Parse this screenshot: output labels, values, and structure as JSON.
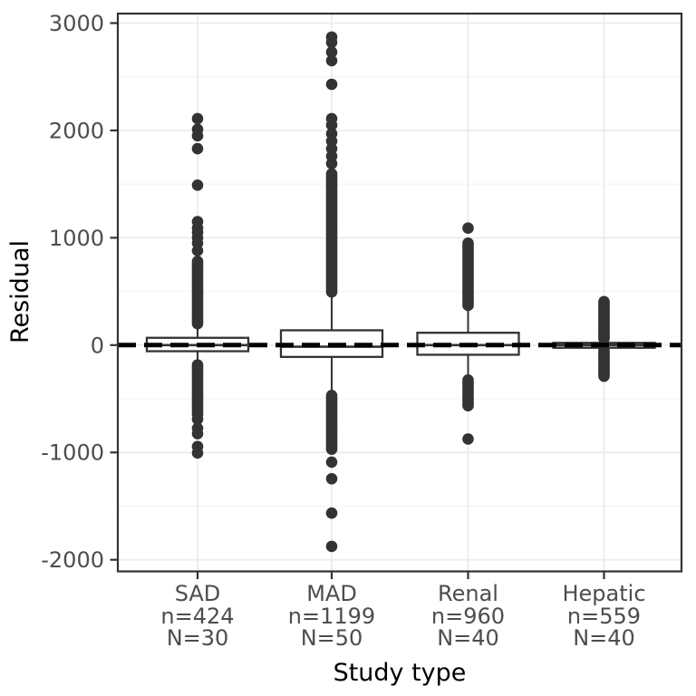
{
  "chart_data": {
    "type": "boxplot",
    "title": "",
    "xlabel": "Study type",
    "ylabel": "Residual",
    "ylim": [
      -2110,
      3090
    ],
    "grid": true,
    "legend": "none",
    "yticks": [
      {
        "value": 3000,
        "label": "3000"
      },
      {
        "value": 2000,
        "label": "2000"
      },
      {
        "value": 1000,
        "label": "1000"
      },
      {
        "value": 0,
        "label": "0"
      },
      {
        "value": -1000,
        "label": "-1000"
      },
      {
        "value": -2000,
        "label": "-2000"
      }
    ],
    "yticks_minor": [
      2500,
      1500,
      500,
      -500,
      -1500
    ],
    "reference_line": {
      "y": 0,
      "style": "dashed",
      "color": "#000000",
      "width": 5,
      "dash": "20 9"
    },
    "categories": [
      {
        "label": "SAD",
        "n_label": "n=424",
        "N_label": "N=30",
        "box": {
          "median": 0,
          "q1": -57,
          "q3": 68,
          "whisker_low": -153,
          "whisker_high": 190
        },
        "outliers_high": [
          200,
          220,
          240,
          260,
          280,
          300,
          320,
          340,
          360,
          380,
          400,
          420,
          440,
          460,
          480,
          500,
          520,
          540,
          560,
          580,
          600,
          620,
          640,
          660,
          680,
          700,
          720,
          740,
          760,
          780,
          880,
          950,
          1000,
          1050,
          1090,
          1150,
          1490,
          1830,
          1950,
          2010,
          2110
        ],
        "outliers_low": [
          -185,
          -205,
          -225,
          -245,
          -265,
          -285,
          -305,
          -325,
          -345,
          -365,
          -385,
          -405,
          -425,
          -445,
          -465,
          -485,
          -505,
          -525,
          -545,
          -565,
          -585,
          -605,
          -625,
          -645,
          -690,
          -775,
          -825,
          -945,
          -1005
        ]
      },
      {
        "label": "MAD",
        "n_label": "n=1199",
        "N_label": "N=50",
        "box": {
          "median": -15,
          "q1": -110,
          "q3": 138,
          "whisker_low": -430,
          "whisker_high": 495
        },
        "outliers_high": [
          495,
          515,
          535,
          555,
          575,
          595,
          615,
          635,
          655,
          675,
          695,
          715,
          735,
          755,
          775,
          795,
          815,
          835,
          855,
          875,
          895,
          915,
          935,
          955,
          975,
          995,
          1015,
          1035,
          1055,
          1075,
          1095,
          1115,
          1135,
          1155,
          1175,
          1195,
          1215,
          1235,
          1255,
          1275,
          1295,
          1315,
          1335,
          1355,
          1375,
          1395,
          1415,
          1435,
          1455,
          1475,
          1495,
          1515,
          1535,
          1555,
          1575,
          1595,
          1690,
          1760,
          1830,
          1900,
          1970,
          2050,
          2110,
          2430,
          2650,
          2730,
          2820,
          2870
        ],
        "outliers_low": [
          -470,
          -490,
          -510,
          -530,
          -550,
          -570,
          -590,
          -610,
          -630,
          -650,
          -670,
          -690,
          -710,
          -730,
          -750,
          -770,
          -790,
          -810,
          -830,
          -850,
          -870,
          -890,
          -910,
          -930,
          -950,
          -970,
          -1090,
          -1245,
          -1565,
          -1875
        ]
      },
      {
        "label": "Renal",
        "n_label": "n=960",
        "N_label": "N=40",
        "box": {
          "median": 0,
          "q1": -90,
          "q3": 115,
          "whisker_low": -315,
          "whisker_high": 340
        },
        "outliers_high": [
          370,
          390,
          410,
          430,
          450,
          470,
          490,
          510,
          530,
          550,
          570,
          590,
          610,
          630,
          650,
          670,
          690,
          710,
          730,
          750,
          770,
          790,
          810,
          830,
          850,
          870,
          890,
          910,
          930,
          950,
          1090
        ],
        "outliers_low": [
          -325,
          -345,
          -365,
          -385,
          -405,
          -425,
          -445,
          -465,
          -485,
          -505,
          -525,
          -545,
          -565,
          -875
        ]
      },
      {
        "label": "Hepatic",
        "n_label": "n=559",
        "N_label": "N=40",
        "box": {
          "median": 0,
          "q1": -25,
          "q3": 21,
          "whisker_low": -45,
          "whisker_high": 55
        },
        "outliers_high": [
          60,
          75,
          90,
          105,
          120,
          135,
          150,
          165,
          180,
          195,
          210,
          225,
          240,
          255,
          270,
          285,
          300,
          315,
          330,
          345,
          360,
          375,
          390,
          405
        ],
        "outliers_low": [
          -50,
          -65,
          -80,
          -95,
          -110,
          -125,
          -140,
          -155,
          -170,
          -185,
          -200,
          -215,
          -230,
          -245,
          -260,
          -275,
          -290
        ]
      }
    ]
  },
  "style": {
    "background": "#ffffff",
    "panel_border": "#333333",
    "grid_major": "#ebebeb",
    "grid_minor": "#f2f2f2",
    "box_stroke": "#333333",
    "box_fill": "#ffffff",
    "point_color": "#333333",
    "tick_color": "#333333",
    "tick_label_color": "#4d4d4d",
    "axis_title_color": "#000000"
  }
}
